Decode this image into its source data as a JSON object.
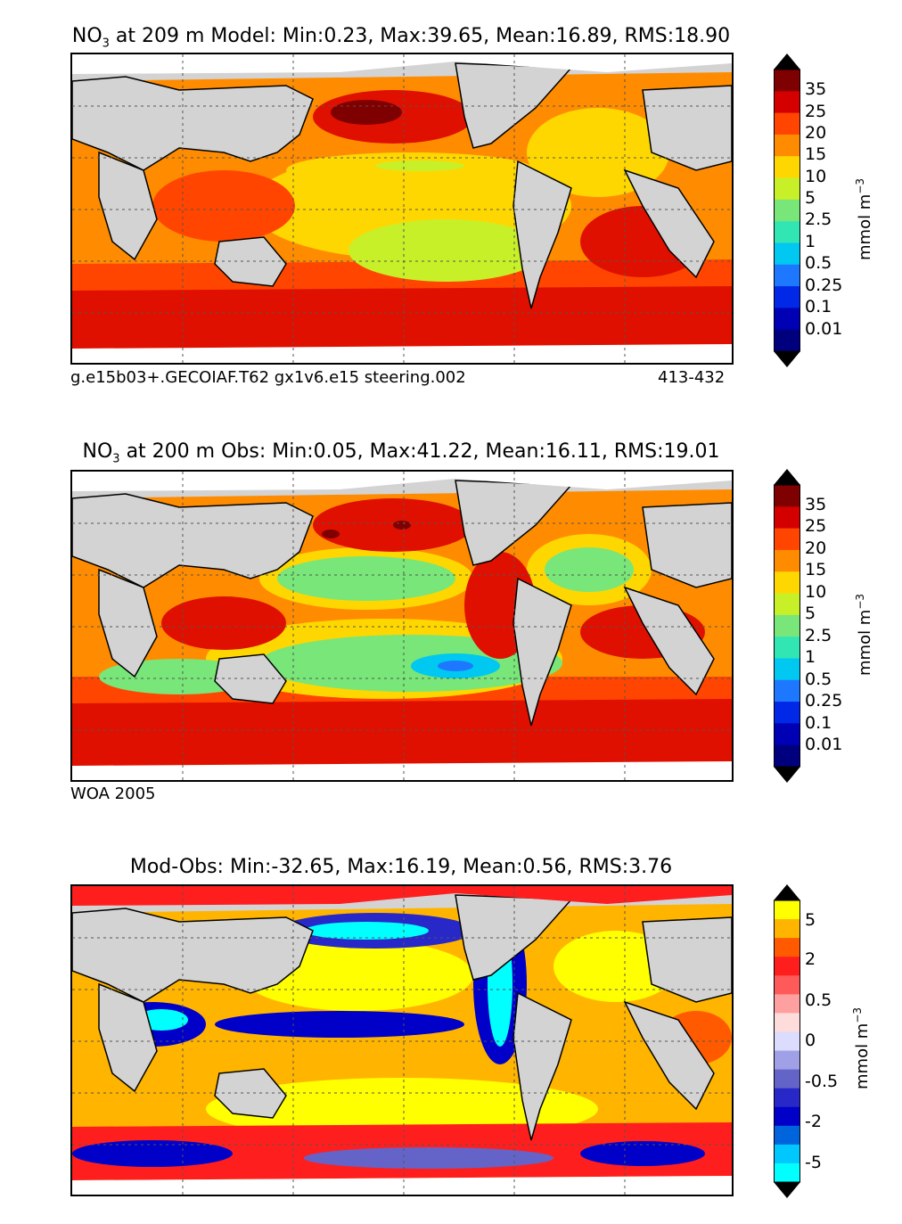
{
  "panels": [
    {
      "title_prefix": "NO",
      "title_sub": "3",
      "title_rest": " at 209 m Model: Min:0.23, Max:39.65, Mean:16.89, RMS:18.90",
      "footer_left": "g.e15b03+.GECOIAF.T62 gx1v6.e15 steering.002",
      "footer_right": "413-432",
      "colorbar": {
        "labels": [
          "35",
          "25",
          "20",
          "15",
          "10",
          "5",
          "2.5",
          "1",
          "0.5",
          "0.25",
          "0.1",
          "0.01"
        ],
        "colors": [
          "#7f0000",
          "#d40000",
          "#ff4500",
          "#ff8c00",
          "#ffd700",
          "#c8f028",
          "#78e678",
          "#32e6b4",
          "#00c8f0",
          "#1e78ff",
          "#0028e6",
          "#0000b4",
          "#00007f"
        ],
        "unit": "mmol m",
        "unit_sup": "−3"
      }
    },
    {
      "title_prefix": "NO",
      "title_sub": "3",
      "title_rest": " at 200 m Obs: Min:0.05, Max:41.22, Mean:16.11, RMS:19.01",
      "footer_left": "WOA 2005",
      "footer_right": "",
      "colorbar": {
        "labels": [
          "35",
          "25",
          "20",
          "15",
          "10",
          "5",
          "2.5",
          "1",
          "0.5",
          "0.25",
          "0.1",
          "0.01"
        ],
        "colors": [
          "#7f0000",
          "#d40000",
          "#ff4500",
          "#ff8c00",
          "#ffd700",
          "#c8f028",
          "#78e678",
          "#32e6b4",
          "#00c8f0",
          "#1e78ff",
          "#0028e6",
          "#0000b4",
          "#00007f"
        ],
        "unit": "mmol m",
        "unit_sup": "−3"
      }
    },
    {
      "title_prefix": "",
      "title_sub": "",
      "title_rest": "Mod-Obs: Min:-32.65, Max:16.19, Mean:0.56, RMS:3.76",
      "footer_left": "",
      "footer_right": "",
      "colorbar": {
        "labels": [
          "5",
          "2",
          "0.5",
          "0",
          "-0.5",
          "-2",
          "-5"
        ],
        "colors": [
          "#ffff00",
          "#ffb400",
          "#ff5a00",
          "#ff1e1e",
          "#ff5a5a",
          "#ffa0a0",
          "#ffdcdc",
          "#dcdcff",
          "#a0a0e6",
          "#6464c8",
          "#2828c8",
          "#0000c8",
          "#0064dc",
          "#00c8ff",
          "#00ffff"
        ],
        "unit": "mmol m",
        "unit_sup": "−3"
      }
    }
  ]
}
